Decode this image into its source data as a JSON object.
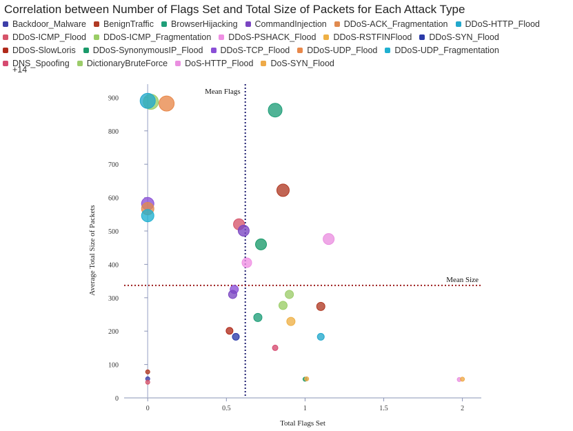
{
  "legend": {
    "items": [
      {
        "name": "Backdoor_Malware",
        "color": "#3d3fa8"
      },
      {
        "name": "BenignTraffic",
        "color": "#b03a24"
      },
      {
        "name": "BrowserHijacking",
        "color": "#1f9e78"
      },
      {
        "name": "CommandInjection",
        "color": "#7a45c2"
      },
      {
        "name": "DDoS-ACK_Fragmentation",
        "color": "#e08a4f"
      },
      {
        "name": "DDoS-HTTP_Flood",
        "color": "#22a8cc"
      },
      {
        "name": "DDoS-ICMP_Flood",
        "color": "#d6546a"
      },
      {
        "name": "DDoS-ICMP_Fragmentation",
        "color": "#9acd65"
      },
      {
        "name": "DDoS-PSHACK_Flood",
        "color": "#ef8fe3"
      },
      {
        "name": "DDoS-RSTFINFlood",
        "color": "#eeb045"
      },
      {
        "name": "DDoS-SYN_Flood",
        "color": "#2b3aa8"
      },
      {
        "name": "DDoS-SlowLoris",
        "color": "#b02a1a"
      },
      {
        "name": "DDoS-SynonymousIP_Flood",
        "color": "#1a9a6a"
      },
      {
        "name": "DDoS-TCP_Flood",
        "color": "#8a4fd6"
      },
      {
        "name": "DDoS-UDP_Flood",
        "color": "#e8884a"
      },
      {
        "name": "DDoS-UDP_Fragmentation",
        "color": "#1fb0d0"
      },
      {
        "name": "DNS_Spoofing",
        "color": "#d64a70"
      },
      {
        "name": "DictionaryBruteForce",
        "color": "#9ccc6a"
      },
      {
        "name": "DoS-HTTP_Flood",
        "color": "#ea8fe0"
      },
      {
        "name": "DoS-SYN_Flood",
        "color": "#eeaa48"
      }
    ],
    "more_label": "+14"
  },
  "chart_data": {
    "type": "scatter",
    "title": "Correlation between Number of Flags Set and Total Size of Packets for Each Attack Type",
    "xlabel": "Total Flags Set",
    "ylabel": "Average Total Size of Packets",
    "xlim": [
      -0.15,
      2.12
    ],
    "ylim": [
      0,
      940
    ],
    "x_ticks": [
      0,
      0.5,
      1,
      1.5,
      2
    ],
    "x_tick_labels": [
      "0",
      "0.5",
      "1",
      "1.5",
      "2"
    ],
    "y_ticks": [
      0,
      100,
      200,
      300,
      400,
      500,
      600,
      700,
      800,
      900
    ],
    "y_tick_labels": [
      "0",
      "100",
      "200",
      "300",
      "400",
      "500",
      "600",
      "700",
      "800",
      "900"
    ],
    "grid": false,
    "legend_position": "top",
    "reference_lines": [
      {
        "axis": "x",
        "value": 0.62,
        "label": "Mean Flags",
        "color": "#1a1a6e"
      },
      {
        "axis": "y",
        "value": 337,
        "label": "Mean Size",
        "color": "#9b1b1b"
      }
    ],
    "points": [
      {
        "x": 0.02,
        "y": 887,
        "color": "#9acd65",
        "size": 11
      },
      {
        "x": 0.0,
        "y": 890,
        "color": "#22a8cc",
        "size": 11
      },
      {
        "x": 0.12,
        "y": 882,
        "color": "#e8884a",
        "size": 11
      },
      {
        "x": 0.81,
        "y": 862,
        "color": "#1f9e78",
        "size": 10
      },
      {
        "x": 0.86,
        "y": 622,
        "color": "#b03a24",
        "size": 9
      },
      {
        "x": 0.0,
        "y": 582,
        "color": "#8a4fd6",
        "size": 9
      },
      {
        "x": 0.0,
        "y": 567,
        "color": "#e08a4f",
        "size": 9
      },
      {
        "x": 0.0,
        "y": 546,
        "color": "#1fb0d0",
        "size": 9
      },
      {
        "x": 0.58,
        "y": 520,
        "color": "#d6546a",
        "size": 8
      },
      {
        "x": 0.61,
        "y": 501,
        "color": "#7a45c2",
        "size": 8
      },
      {
        "x": 1.15,
        "y": 476,
        "color": "#ea8fe0",
        "size": 8
      },
      {
        "x": 0.72,
        "y": 460,
        "color": "#1a9a6a",
        "size": 8
      },
      {
        "x": 0.63,
        "y": 405,
        "color": "#ef8fe3",
        "size": 7
      },
      {
        "x": 0.55,
        "y": 325,
        "color": "#8a4fd6",
        "size": 6
      },
      {
        "x": 0.54,
        "y": 310,
        "color": "#7a45c2",
        "size": 6
      },
      {
        "x": 0.9,
        "y": 310,
        "color": "#9ccc6a",
        "size": 6
      },
      {
        "x": 0.86,
        "y": 277,
        "color": "#9acd65",
        "size": 6
      },
      {
        "x": 1.1,
        "y": 274,
        "color": "#b03a24",
        "size": 6
      },
      {
        "x": 0.7,
        "y": 241,
        "color": "#1f9e78",
        "size": 6
      },
      {
        "x": 0.91,
        "y": 229,
        "color": "#eeb045",
        "size": 6
      },
      {
        "x": 0.52,
        "y": 201,
        "color": "#b02a1a",
        "size": 5
      },
      {
        "x": 0.56,
        "y": 183,
        "color": "#2b3aa8",
        "size": 5
      },
      {
        "x": 1.1,
        "y": 183,
        "color": "#22a8cc",
        "size": 5
      },
      {
        "x": 0.81,
        "y": 150,
        "color": "#d64a70",
        "size": 4
      },
      {
        "x": 0.0,
        "y": 78,
        "color": "#b03a24",
        "size": 3
      },
      {
        "x": 0.0,
        "y": 57,
        "color": "#3d3fa8",
        "size": 3
      },
      {
        "x": 0.0,
        "y": 47,
        "color": "#d6546a",
        "size": 3
      },
      {
        "x": 1.0,
        "y": 56,
        "color": "#1a9a6a",
        "size": 3
      },
      {
        "x": 1.01,
        "y": 57,
        "color": "#eeaa48",
        "size": 3
      },
      {
        "x": 1.98,
        "y": 55,
        "color": "#ea8fe0",
        "size": 3
      },
      {
        "x": 2.0,
        "y": 56,
        "color": "#eeaa48",
        "size": 3
      }
    ]
  }
}
